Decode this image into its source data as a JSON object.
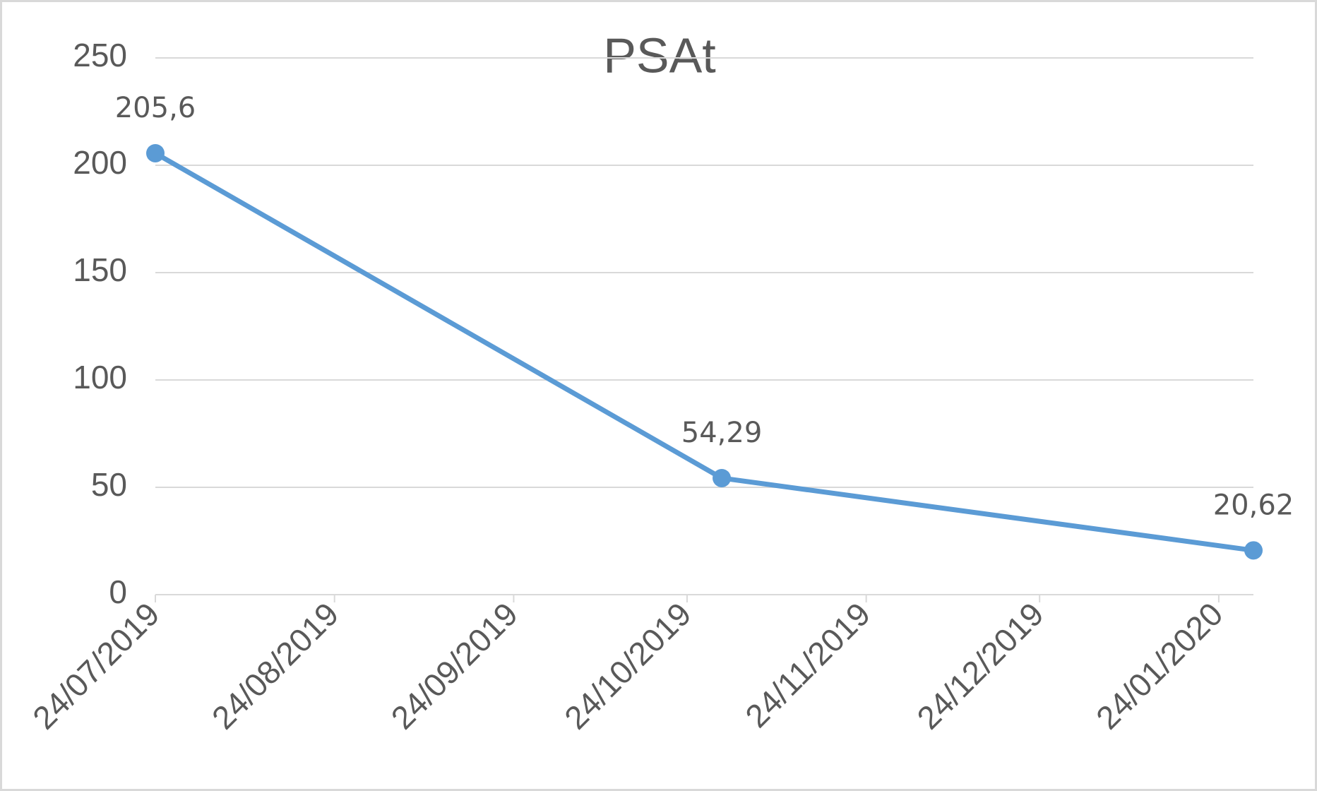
{
  "chart_data": {
    "type": "line",
    "title": "PSAt",
    "x": [
      "24/07/2019",
      "30/10/2019",
      "30/01/2020"
    ],
    "values": [
      205.6,
      54.29,
      20.62
    ],
    "value_labels": [
      "205,6",
      "54,29",
      "20,62"
    ],
    "color": "#5b9bd5",
    "xlim": [
      "24/07/2019",
      "30/01/2020"
    ],
    "xticks": [
      "24/07/2019",
      "24/08/2019",
      "24/09/2019",
      "24/10/2019",
      "24/11/2019",
      "24/12/2019",
      "24/01/2020"
    ],
    "ylim": [
      0,
      250
    ],
    "yticks": [
      0,
      50,
      100,
      150,
      200,
      250
    ],
    "grid": true
  }
}
